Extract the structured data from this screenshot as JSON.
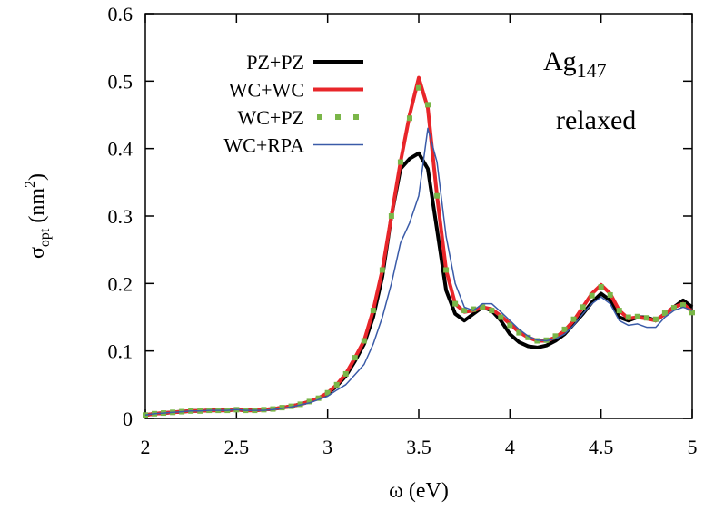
{
  "chart_data": {
    "type": "line",
    "xlabel": "ω (eV)",
    "ylabel_parts": [
      "σ",
      "opt",
      " (nm",
      "2",
      ")"
    ],
    "annotation_parts": [
      "Ag",
      "147"
    ],
    "annotation2": "relaxed",
    "legend": "top-left",
    "xlim": [
      2,
      5
    ],
    "xticks": [
      2,
      2.5,
      3,
      3.5,
      4,
      4.5,
      5
    ],
    "ylim": [
      0,
      0.6
    ],
    "yticks": [
      0,
      0.1,
      0.2,
      0.3,
      0.4,
      0.5,
      0.6
    ],
    "x": [
      2.0,
      2.05,
      2.1,
      2.15,
      2.2,
      2.25,
      2.3,
      2.35,
      2.4,
      2.45,
      2.5,
      2.55,
      2.6,
      2.65,
      2.7,
      2.75,
      2.8,
      2.85,
      2.9,
      2.95,
      3.0,
      3.05,
      3.1,
      3.15,
      3.2,
      3.25,
      3.3,
      3.35,
      3.4,
      3.45,
      3.5,
      3.55,
      3.6,
      3.65,
      3.7,
      3.75,
      3.8,
      3.85,
      3.9,
      3.95,
      4.0,
      4.05,
      4.1,
      4.15,
      4.2,
      4.25,
      4.3,
      4.35,
      4.4,
      4.45,
      4.5,
      4.55,
      4.6,
      4.65,
      4.7,
      4.75,
      4.8,
      4.85,
      4.9,
      4.95,
      5.0
    ],
    "series": [
      {
        "name": "PZ+PZ",
        "color": "#000000",
        "style": "thick",
        "values": [
          0.005,
          0.007,
          0.008,
          0.009,
          0.01,
          0.011,
          0.011,
          0.012,
          0.012,
          0.012,
          0.013,
          0.012,
          0.012,
          0.013,
          0.014,
          0.016,
          0.018,
          0.021,
          0.025,
          0.03,
          0.037,
          0.048,
          0.063,
          0.085,
          0.11,
          0.15,
          0.21,
          0.3,
          0.37,
          0.385,
          0.393,
          0.37,
          0.28,
          0.19,
          0.155,
          0.145,
          0.155,
          0.165,
          0.16,
          0.145,
          0.125,
          0.113,
          0.107,
          0.105,
          0.108,
          0.115,
          0.125,
          0.14,
          0.155,
          0.172,
          0.185,
          0.175,
          0.15,
          0.145,
          0.15,
          0.15,
          0.145,
          0.155,
          0.165,
          0.175,
          0.165
        ]
      },
      {
        "name": "WC+WC",
        "color": "#e8262a",
        "style": "thick",
        "values": [
          0.005,
          0.007,
          0.008,
          0.009,
          0.01,
          0.011,
          0.011,
          0.012,
          0.012,
          0.012,
          0.013,
          0.012,
          0.012,
          0.013,
          0.014,
          0.016,
          0.018,
          0.021,
          0.025,
          0.03,
          0.038,
          0.05,
          0.066,
          0.09,
          0.115,
          0.16,
          0.22,
          0.3,
          0.38,
          0.45,
          0.505,
          0.46,
          0.33,
          0.22,
          0.17,
          0.158,
          0.16,
          0.165,
          0.162,
          0.152,
          0.14,
          0.128,
          0.12,
          0.115,
          0.115,
          0.12,
          0.13,
          0.145,
          0.165,
          0.185,
          0.198,
          0.185,
          0.16,
          0.148,
          0.15,
          0.148,
          0.145,
          0.155,
          0.165,
          0.17,
          0.158
        ]
      },
      {
        "name": "WC+PZ",
        "color": "#7ab648",
        "style": "dots",
        "values": [
          0.005,
          0.007,
          0.008,
          0.009,
          0.01,
          0.011,
          0.011,
          0.012,
          0.012,
          0.012,
          0.013,
          0.012,
          0.012,
          0.013,
          0.014,
          0.016,
          0.018,
          0.021,
          0.025,
          0.03,
          0.038,
          0.05,
          0.066,
          0.09,
          0.115,
          0.16,
          0.22,
          0.3,
          0.38,
          0.445,
          0.49,
          0.465,
          0.33,
          0.22,
          0.17,
          0.16,
          0.162,
          0.165,
          0.16,
          0.15,
          0.138,
          0.127,
          0.12,
          0.115,
          0.116,
          0.122,
          0.132,
          0.147,
          0.165,
          0.182,
          0.195,
          0.183,
          0.16,
          0.15,
          0.151,
          0.149,
          0.147,
          0.156,
          0.164,
          0.168,
          0.157
        ]
      },
      {
        "name": "WC+RPA",
        "color": "#3a5ba8",
        "style": "thin",
        "values": [
          0.005,
          0.007,
          0.008,
          0.009,
          0.01,
          0.011,
          0.011,
          0.012,
          0.012,
          0.012,
          0.013,
          0.012,
          0.012,
          0.012,
          0.013,
          0.015,
          0.017,
          0.02,
          0.023,
          0.028,
          0.033,
          0.042,
          0.05,
          0.065,
          0.08,
          0.11,
          0.15,
          0.2,
          0.26,
          0.29,
          0.33,
          0.43,
          0.38,
          0.27,
          0.2,
          0.165,
          0.16,
          0.17,
          0.17,
          0.158,
          0.145,
          0.132,
          0.122,
          0.116,
          0.115,
          0.118,
          0.125,
          0.138,
          0.155,
          0.17,
          0.18,
          0.17,
          0.145,
          0.138,
          0.14,
          0.135,
          0.135,
          0.15,
          0.16,
          0.165,
          0.16
        ]
      }
    ]
  }
}
